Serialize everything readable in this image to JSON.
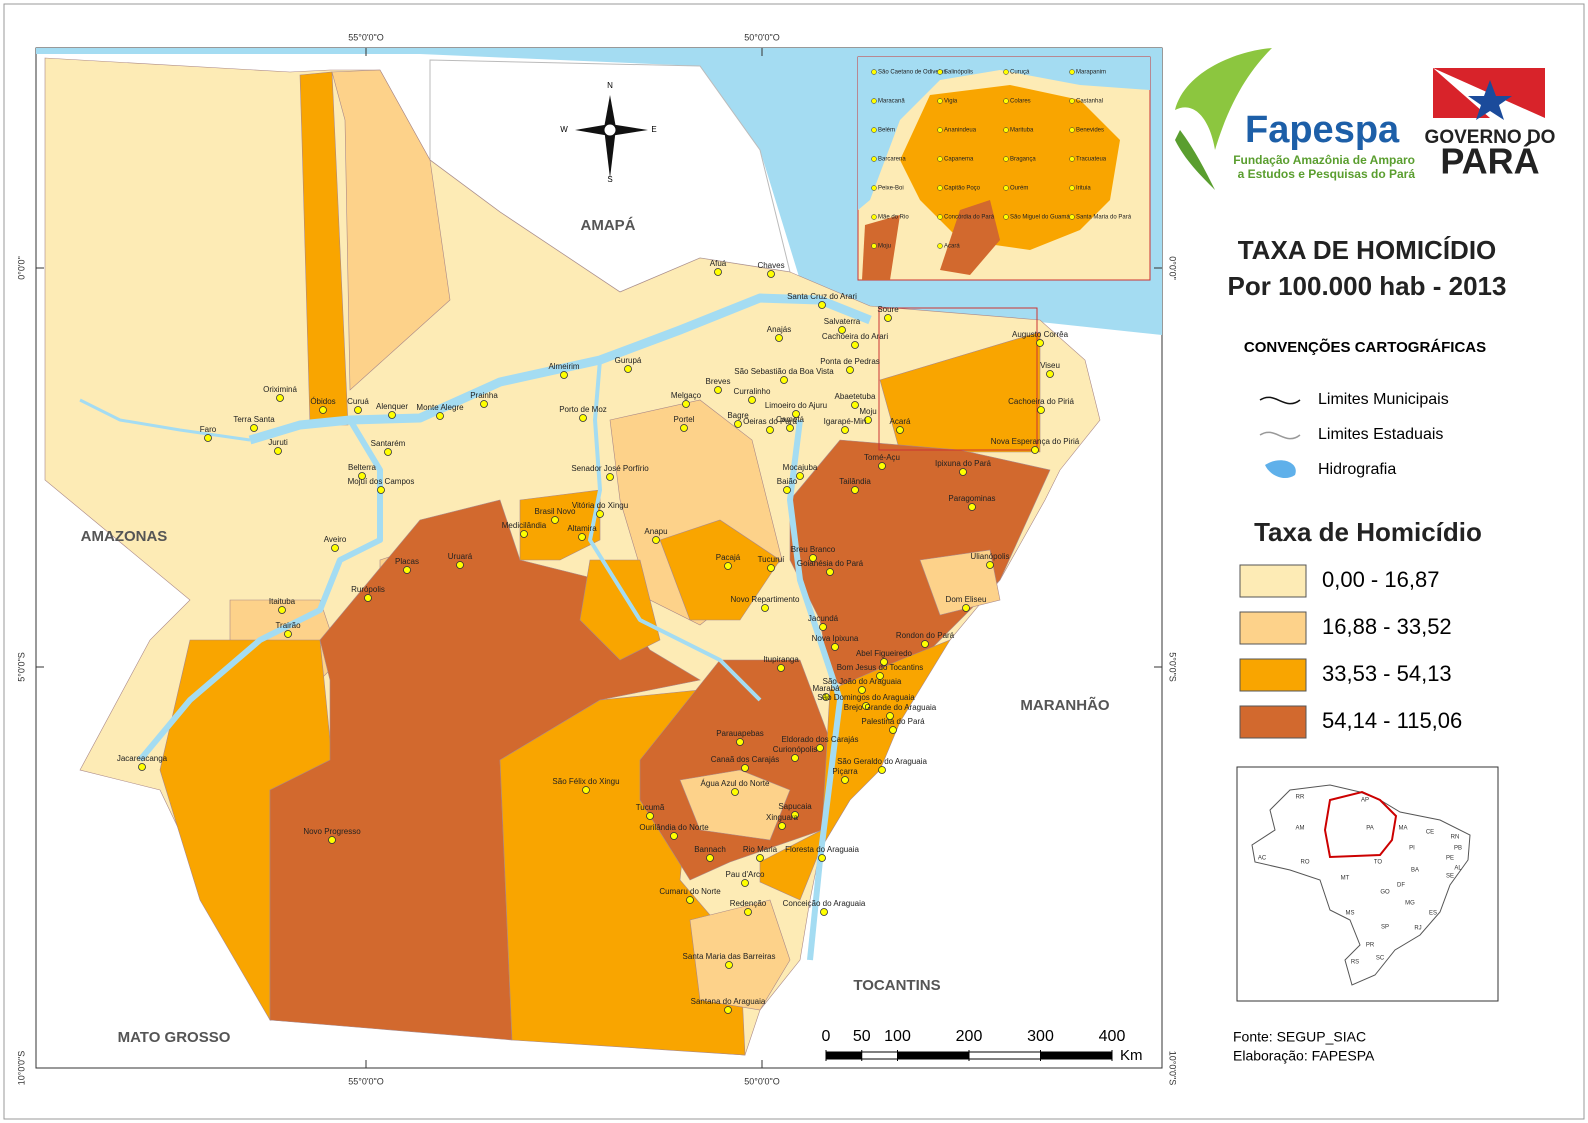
{
  "map": {
    "title": "TAXA DE HOMICÍDIO",
    "subtitle": "Por 100.000 hab - 2013",
    "conventions_title": "CONVENÇÕES CARTOGRÁFICAS",
    "conventions": [
      "Limites Municipais",
      "Limites Estaduais",
      "Hidrografia"
    ],
    "legend_title": "Taxa de Homicídio",
    "legend_classes": [
      {
        "label": "0,00 - 16,87",
        "color": "#fdebb5"
      },
      {
        "label": "16,88 - 33,52",
        "color": "#fdd28a"
      },
      {
        "label": "33,53 - 54,13",
        "color": "#f9a500"
      },
      {
        "label": "54,14 - 115,06",
        "color": "#d2692e"
      }
    ],
    "scale": {
      "ticks": [
        0,
        50,
        100,
        200,
        300,
        400
      ],
      "unit": "Km"
    },
    "source": "Fonte: SEGUP_SIAC",
    "credit": "Elaboração: FAPESPA",
    "graticule": {
      "longitudes": [
        "55°0'0\"O",
        "50°0'0\"O"
      ],
      "latitudes": [
        "0°0'0\"",
        "5°0'0\"S",
        "10°0'0\"S"
      ]
    },
    "compass": [
      "N",
      "E",
      "S",
      "W"
    ],
    "states": [
      "AMAPÁ",
      "AMAZONAS",
      "MARANHÃO",
      "TOCANTINS",
      "MATO GROSSO"
    ],
    "municipalities": [
      "Oriximiná",
      "Óbidos",
      "Curuá",
      "Alenquer",
      "Monte Alegre",
      "Prainha",
      "Faro",
      "Terra Santa",
      "Juruti",
      "Santarém",
      "Belterra",
      "Mojuí dos Campos",
      "Aveiro",
      "Placas",
      "Rurópolis",
      "Itaituba",
      "Trairão",
      "Jacareacanga",
      "Novo Progresso",
      "Uruará",
      "Medicilândia",
      "Brasil Novo",
      "Altamira",
      "Vitória do Xingu",
      "Anapu",
      "Senador José Porfírio",
      "Porto de Moz",
      "Almeirim",
      "Gurupá",
      "Afuá",
      "Chaves",
      "Melgaço",
      "Portel",
      "Breves",
      "Bagre",
      "Curralinho",
      "Oeiras do Pará",
      "Anajás",
      "São Sebastião da Boa Vista",
      "Limoeiro do Ajuru",
      "Cametá",
      "Mocajuba",
      "Baião",
      "Pacajá",
      "Tucuruí",
      "Breu Branco",
      "Goianésia do Pará",
      "Novo Repartimento",
      "Jacundá",
      "Nova Ipixuna",
      "Itupiranga",
      "Marabá",
      "Parauapebas",
      "Eldorado dos Carajás",
      "Curionópolis",
      "Canaã dos Carajás",
      "Água Azul do Norte",
      "Piçarra",
      "São Félix do Xingu",
      "Tucumã",
      "Sapucaia",
      "Xinguara",
      "Ourilândia do Norte",
      "Bannach",
      "Rio Maria",
      "Floresta do Araguaia",
      "Pau d'Arco",
      "Cumaru do Norte",
      "Redenção",
      "Conceição do Araguaia",
      "Santa Maria das Barreiras",
      "Santana do Araguaia",
      "Abel Figueiredo",
      "Bom Jesus do Tocantins",
      "São João do Araguaia",
      "São Domingos do Araguaia",
      "Brejo Grande do Araguaia",
      "Palestina do Pará",
      "São Geraldo do Araguaia",
      "Rondon do Pará",
      "Dom Eliseu",
      "Ulianópolis",
      "Paragominas",
      "Ipixuna do Pará",
      "Tailândia",
      "Tomé-Açu",
      "Acará",
      "Moju",
      "Igarapé-Miri",
      "Abaetetuba",
      "Nova Esperança do Piriá",
      "Cachoeira do Piriá",
      "Augusto Corrêa",
      "Viseu",
      "Soure",
      "Salvaterra",
      "Cachoeira do Arari",
      "Ponta de Pedras",
      "Santa Cruz do Arari"
    ],
    "inset_labels": [
      "São Caetano de Odivelas",
      "Salinópolis",
      "Curuçá",
      "Marapanim",
      "Maracanã",
      "Vigia",
      "Colares",
      "Castanhal",
      "Belém",
      "Ananindeua",
      "Marituba",
      "Benevides",
      "Barcarena",
      "Capanema",
      "Bragança",
      "Tracuateua",
      "Peixe-Boi",
      "Capitão Poço",
      "Ourém",
      "Irituia",
      "Mãe do Rio",
      "Concórdia do Pará",
      "São Miguel do Guamá",
      "Santa Maria do Pará",
      "Moju",
      "Acará"
    ],
    "brazil_states": [
      "RR",
      "AP",
      "AM",
      "PA",
      "MA",
      "CE",
      "RN",
      "PB",
      "PE",
      "AL",
      "SE",
      "PI",
      "BA",
      "TO",
      "AC",
      "RO",
      "MT",
      "GO",
      "DF",
      "MG",
      "ES",
      "RJ",
      "SP",
      "MS",
      "PR",
      "SC",
      "RS"
    ],
    "logos": {
      "fapespa": "Fapespa",
      "fapespa_line1": "Fundação Amazônia de Amparo",
      "fapespa_line2": "a Estudos e Pesquisas do Pará",
      "gov_line1": "GOVERNO DO",
      "gov_line2": "PARÁ"
    }
  }
}
